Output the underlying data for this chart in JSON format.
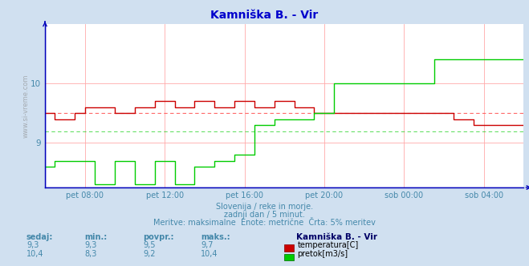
{
  "title": "Kamniška B. - Vir",
  "title_color": "#0000cc",
  "bg_color": "#d0e0f0",
  "plot_bg_color": "#ffffff",
  "grid_color": "#ffaaaa",
  "axis_color": "#0000bb",
  "text_color": "#4488aa",
  "watermark": "www.si-vreme.com",
  "subtitle1": "Slovenija / reke in morje.",
  "subtitle2": "zadnji dan / 5 minut.",
  "subtitle3": "Meritve: maksimalne  Enote: metrične  Črta: 5% meritev",
  "xtick_labels": [
    "pet 08:00",
    "pet 12:00",
    "pet 16:00",
    "pet 20:00",
    "sob 00:00",
    "sob 04:00"
  ],
  "xtick_positions": [
    24,
    72,
    120,
    168,
    216,
    264
  ],
  "yticks": [
    9,
    10
  ],
  "ylim_min": 8.25,
  "ylim_max": 11.0,
  "xlim_min": 0,
  "xlim_max": 288,
  "avg_temp": 9.5,
  "avg_flow": 9.2,
  "temp_color": "#cc0000",
  "flow_color": "#00cc00",
  "avg_dotted_color": "#ff6666",
  "table_headers": [
    "sedaj:",
    "min.:",
    "povpr.:",
    "maks.:"
  ],
  "table_temp_row": [
    "9,3",
    "9,3",
    "9,5",
    "9,7"
  ],
  "table_flow_row": [
    "10,4",
    "8,3",
    "9,2",
    "10,4"
  ],
  "legend_station": "Kamniška B. - Vir",
  "legend_temp": "temperatura[C]",
  "legend_flow": "pretok[m3/s]",
  "temp_color_box": "#cc0000",
  "flow_color_box": "#00cc00",
  "temp_data_x": [
    0,
    6,
    6,
    18,
    18,
    24,
    24,
    42,
    42,
    54,
    54,
    66,
    66,
    78,
    78,
    90,
    90,
    102,
    102,
    114,
    114,
    126,
    126,
    138,
    138,
    150,
    150,
    162,
    162,
    174,
    174,
    186,
    186,
    198,
    198,
    210,
    210,
    222,
    222,
    234,
    234,
    246,
    246,
    258,
    258,
    270,
    270,
    282,
    282,
    288
  ],
  "temp_data_y": [
    9.5,
    9.5,
    9.4,
    9.4,
    9.5,
    9.5,
    9.6,
    9.6,
    9.5,
    9.5,
    9.6,
    9.6,
    9.7,
    9.7,
    9.6,
    9.6,
    9.7,
    9.7,
    9.6,
    9.6,
    9.7,
    9.7,
    9.6,
    9.6,
    9.7,
    9.7,
    9.6,
    9.6,
    9.5,
    9.5,
    9.5,
    9.5,
    9.5,
    9.5,
    9.5,
    9.5,
    9.5,
    9.5,
    9.5,
    9.5,
    9.5,
    9.5,
    9.4,
    9.4,
    9.3,
    9.3,
    9.3,
    9.3,
    9.3,
    9.3
  ],
  "flow_data_x": [
    0,
    6,
    6,
    30,
    30,
    42,
    42,
    54,
    54,
    66,
    66,
    78,
    78,
    90,
    90,
    102,
    102,
    114,
    114,
    126,
    126,
    138,
    138,
    162,
    162,
    174,
    174,
    186,
    186,
    198,
    198,
    210,
    210,
    222,
    222,
    234,
    234,
    246,
    246,
    258,
    258,
    270,
    270,
    282,
    282,
    288
  ],
  "flow_data_y": [
    8.6,
    8.6,
    8.7,
    8.7,
    8.3,
    8.3,
    8.7,
    8.7,
    8.3,
    8.3,
    8.7,
    8.7,
    8.3,
    8.3,
    8.6,
    8.6,
    8.7,
    8.7,
    8.8,
    8.8,
    9.3,
    9.3,
    9.4,
    9.4,
    9.5,
    9.5,
    10.0,
    10.0,
    10.0,
    10.0,
    10.0,
    10.0,
    10.0,
    10.0,
    10.0,
    10.0,
    10.4,
    10.4,
    10.4,
    10.4,
    10.4,
    10.4,
    10.4,
    10.4,
    10.4,
    10.4
  ]
}
